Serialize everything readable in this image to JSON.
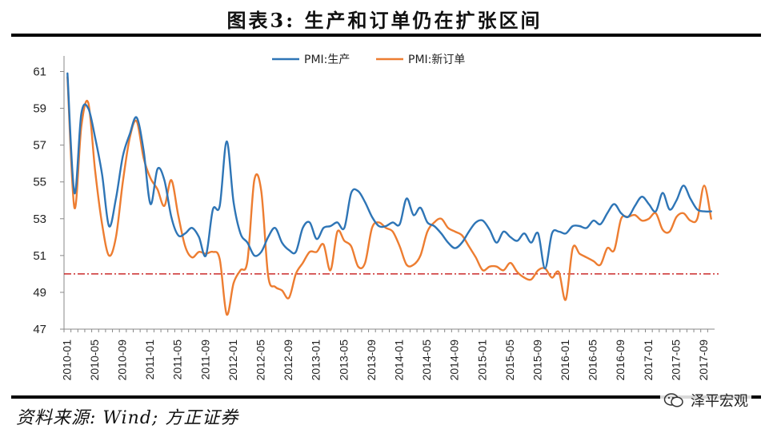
{
  "figure": {
    "title": "图表3:  生产和订单仍在扩张区间",
    "source": "资料来源: Wind; 方正证券",
    "watermark": "泽平宏观"
  },
  "chart_data": {
    "type": "line",
    "title": "",
    "xlabel": "",
    "ylabel": "",
    "ylim": [
      47,
      61.5
    ],
    "yticks": [
      47,
      49,
      51,
      53,
      55,
      57,
      59,
      61
    ],
    "xticks": [
      "2010-01",
      "2010-05",
      "2010-09",
      "2011-01",
      "2011-05",
      "2011-09",
      "2012-01",
      "2012-05",
      "2012-09",
      "2013-01",
      "2013-05",
      "2013-09",
      "2014-01",
      "2014-05",
      "2014-09",
      "2015-01",
      "2015-05",
      "2015-09",
      "2016-01",
      "2016-05",
      "2016-09",
      "2017-01",
      "2017-05",
      "2017-09"
    ],
    "x": [
      "2010-01",
      "2010-02",
      "2010-03",
      "2010-04",
      "2010-05",
      "2010-06",
      "2010-07",
      "2010-08",
      "2010-09",
      "2010-10",
      "2010-11",
      "2010-12",
      "2011-01",
      "2011-02",
      "2011-03",
      "2011-04",
      "2011-05",
      "2011-06",
      "2011-07",
      "2011-08",
      "2011-09",
      "2011-10",
      "2011-11",
      "2011-12",
      "2012-01",
      "2012-02",
      "2012-03",
      "2012-04",
      "2012-05",
      "2012-06",
      "2012-07",
      "2012-08",
      "2012-09",
      "2012-10",
      "2012-11",
      "2012-12",
      "2013-01",
      "2013-02",
      "2013-03",
      "2013-04",
      "2013-05",
      "2013-06",
      "2013-07",
      "2013-08",
      "2013-09",
      "2013-10",
      "2013-11",
      "2013-12",
      "2014-01",
      "2014-02",
      "2014-03",
      "2014-04",
      "2014-05",
      "2014-06",
      "2014-07",
      "2014-08",
      "2014-09",
      "2014-10",
      "2014-11",
      "2014-12",
      "2015-01",
      "2015-02",
      "2015-03",
      "2015-04",
      "2015-05",
      "2015-06",
      "2015-07",
      "2015-08",
      "2015-09",
      "2015-10",
      "2015-11",
      "2015-12",
      "2016-01",
      "2016-02",
      "2016-03",
      "2016-04",
      "2016-05",
      "2016-06",
      "2016-07",
      "2016-08",
      "2016-09",
      "2016-10",
      "2016-11",
      "2016-12",
      "2017-01",
      "2017-02",
      "2017-03",
      "2017-04",
      "2017-05",
      "2017-06",
      "2017-07",
      "2017-08",
      "2017-09",
      "2017-10"
    ],
    "series": [
      {
        "name": "PMI:生产",
        "color": "#2E75B6",
        "values": [
          60.9,
          54.4,
          58.7,
          59.0,
          57.4,
          55.4,
          52.6,
          54.1,
          56.4,
          57.6,
          58.5,
          56.7,
          53.8,
          55.7,
          55.1,
          53.1,
          52.1,
          52.2,
          52.5,
          52.0,
          51.0,
          53.5,
          53.7,
          57.2,
          53.9,
          52.2,
          51.7,
          51.0,
          51.2,
          52.0,
          52.5,
          51.7,
          51.3,
          51.2,
          52.5,
          52.8,
          51.9,
          52.5,
          52.6,
          52.8,
          52.5,
          54.4,
          54.5,
          53.9,
          53.1,
          52.6,
          52.6,
          52.8,
          52.7,
          54.1,
          53.2,
          53.6,
          52.8,
          52.6,
          52.2,
          51.7,
          51.4,
          51.7,
          52.3,
          52.8,
          52.9,
          52.4,
          51.7,
          52.3,
          52.0,
          51.8,
          52.2,
          51.7,
          52.2,
          50.3,
          52.2,
          52.3,
          52.2,
          52.6,
          52.6,
          52.5,
          52.9,
          52.7,
          53.3,
          53.8,
          53.3,
          53.1,
          53.7,
          54.2,
          53.8,
          53.4,
          54.4,
          53.5,
          54.0,
          54.8,
          54.1,
          53.5,
          53.4,
          53.4
        ]
      },
      {
        "name": "PMI:新订单",
        "color": "#ED7D31",
        "values": [
          60.7,
          53.6,
          58.0,
          59.3,
          55.6,
          52.7,
          51.0,
          52.0,
          55.0,
          57.4,
          58.3,
          56.3,
          55.2,
          54.6,
          53.7,
          55.1,
          53.2,
          51.5,
          50.9,
          51.2,
          51.1,
          51.2,
          50.8,
          47.8,
          49.5,
          50.2,
          50.7,
          55.1,
          54.5,
          49.9,
          49.3,
          49.1,
          48.7,
          50.0,
          50.6,
          51.2,
          51.2,
          51.6,
          50.2,
          52.3,
          51.8,
          51.5,
          50.4,
          50.6,
          52.5,
          52.8,
          52.5,
          52.3,
          51.5,
          50.5,
          50.5,
          51.0,
          52.3,
          52.8,
          53.0,
          52.5,
          52.3,
          52.1,
          51.5,
          50.9,
          50.2,
          50.4,
          50.4,
          50.2,
          50.6,
          50.1,
          49.8,
          49.7,
          50.2,
          50.3,
          49.8,
          50.1,
          48.6,
          51.4,
          51.1,
          50.9,
          50.7,
          50.5,
          51.4,
          51.3,
          53.0,
          53.1,
          53.2,
          52.9,
          53.0,
          53.3,
          52.4,
          52.3,
          53.1,
          53.3,
          52.9,
          53.0,
          54.8,
          53.0
        ]
      }
    ],
    "reference_line": {
      "y": 50,
      "color": "#C00000",
      "style": "dash-dot"
    },
    "legend": {
      "placement": "top"
    },
    "grid": false
  }
}
